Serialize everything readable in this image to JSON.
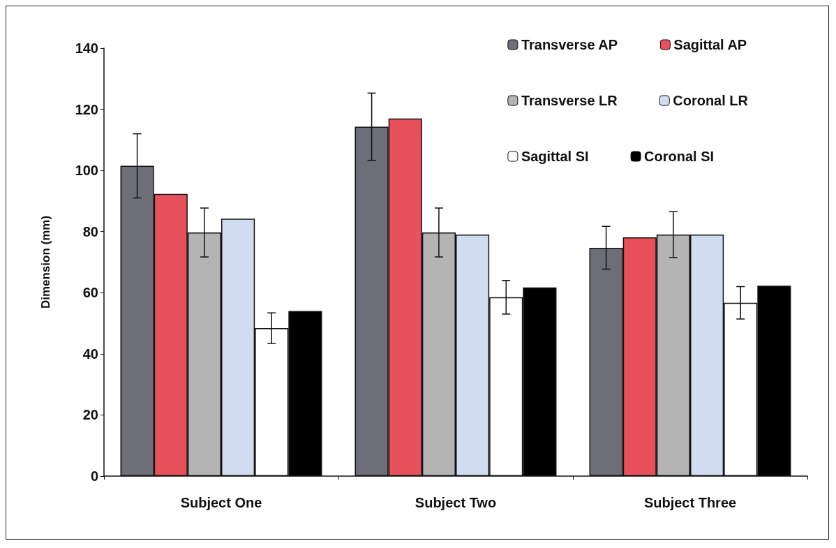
{
  "chart_data": {
    "type": "bar",
    "ylabel": "Dimension (mm)",
    "categories": [
      "Subject One",
      "Subject Two",
      "Subject Three"
    ],
    "series": [
      {
        "name": "Transverse AP",
        "color": "#6e6e78",
        "values": [
          101.5,
          114.3,
          74.7
        ],
        "errors": [
          10.5,
          11,
          7
        ]
      },
      {
        "name": "Sagittal AP",
        "color": "#e8505b",
        "values": [
          92.3,
          117,
          78.1
        ]
      },
      {
        "name": "Transverse LR",
        "color": "#b4b4b4",
        "values": [
          79.7,
          79.7,
          79
        ],
        "errors": [
          8,
          8,
          7.5
        ]
      },
      {
        "name": "Coronal LR",
        "color": "#d2dcf0",
        "values": [
          84.2,
          79,
          79
        ]
      },
      {
        "name": "Sagittal SI",
        "color": "#ffffff",
        "values": [
          48.4,
          58.5,
          56.7
        ],
        "errors": [
          5,
          5.5,
          5.3
        ]
      },
      {
        "name": "Coronal SI",
        "color": "#000000",
        "values": [
          54,
          61.7,
          62.3
        ]
      }
    ],
    "ylim": [
      0,
      140
    ],
    "yticks": [
      0,
      20,
      40,
      60,
      80,
      100,
      120,
      140
    ],
    "grid": false,
    "legend": "top right"
  }
}
